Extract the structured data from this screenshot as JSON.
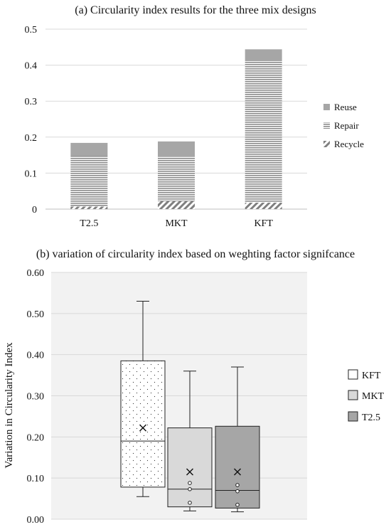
{
  "colors": {
    "reuse": "#a6a6a6",
    "repair": "#8c8c8c",
    "recycle": "#7f7f7f",
    "plot_bg": "#f2f2f2",
    "kft_box": "#ffffff",
    "mkt_box": "#d9d9d9",
    "t25_box": "#a6a6a6",
    "grid": "#d9d9d9"
  },
  "chart_data": [
    {
      "type": "bar",
      "stacked": true,
      "title": "(a) Circularity index results for the three mix designs",
      "categories": [
        "T2.5",
        "MKT",
        "KFT"
      ],
      "series": [
        {
          "name": "Recycle",
          "values": [
            0.007,
            0.022,
            0.018
          ],
          "pattern": "diagonal-hatch"
        },
        {
          "name": "Repair",
          "values": [
            0.141,
            0.125,
            0.393
          ],
          "pattern": "horizontal-lines"
        },
        {
          "name": "Reuse",
          "values": [
            0.036,
            0.041,
            0.033
          ],
          "pattern": "solid"
        }
      ],
      "xlabel": "",
      "ylabel": "",
      "ylim": [
        0,
        0.5
      ],
      "yticks": [
        "0",
        "0.1",
        "0.2",
        "0.3",
        "0.4",
        "0.5"
      ],
      "yticks_values": [
        0,
        0.1,
        0.2,
        0.3,
        0.4,
        0.5
      ],
      "grid": true,
      "legend_placement": "right",
      "legend_order": [
        "Reuse",
        "Repair",
        "Recycle"
      ]
    },
    {
      "type": "box",
      "title": "(b) variation of circularity index based on weghting factor signifcance",
      "ylabel": "Variation in Circularity Index",
      "xlabel": "",
      "ylim": [
        0,
        0.6
      ],
      "yticks": [
        "0.00",
        "0.10",
        "0.20",
        "0.30",
        "0.40",
        "0.50",
        "0.60"
      ],
      "yticks_values": [
        0,
        0.1,
        0.2,
        0.3,
        0.4,
        0.5,
        0.6
      ],
      "grid": true,
      "legend_placement": "right",
      "series": [
        {
          "name": "KFT",
          "min": 0.055,
          "q1": 0.078,
          "median": 0.19,
          "q3": 0.385,
          "max": 0.53,
          "mean": 0.222,
          "points": [],
          "fill": "dotted-white"
        },
        {
          "name": "MKT",
          "min": 0.02,
          "q1": 0.03,
          "median": 0.073,
          "q3": 0.222,
          "max": 0.36,
          "mean": 0.115,
          "points": [
            0.04,
            0.073,
            0.088
          ],
          "fill": "light-gray"
        },
        {
          "name": "T2.5",
          "min": 0.018,
          "q1": 0.027,
          "median": 0.07,
          "q3": 0.226,
          "max": 0.37,
          "mean": 0.115,
          "points": [
            0.035,
            0.068,
            0.083
          ],
          "fill": "gray"
        }
      ]
    }
  ]
}
